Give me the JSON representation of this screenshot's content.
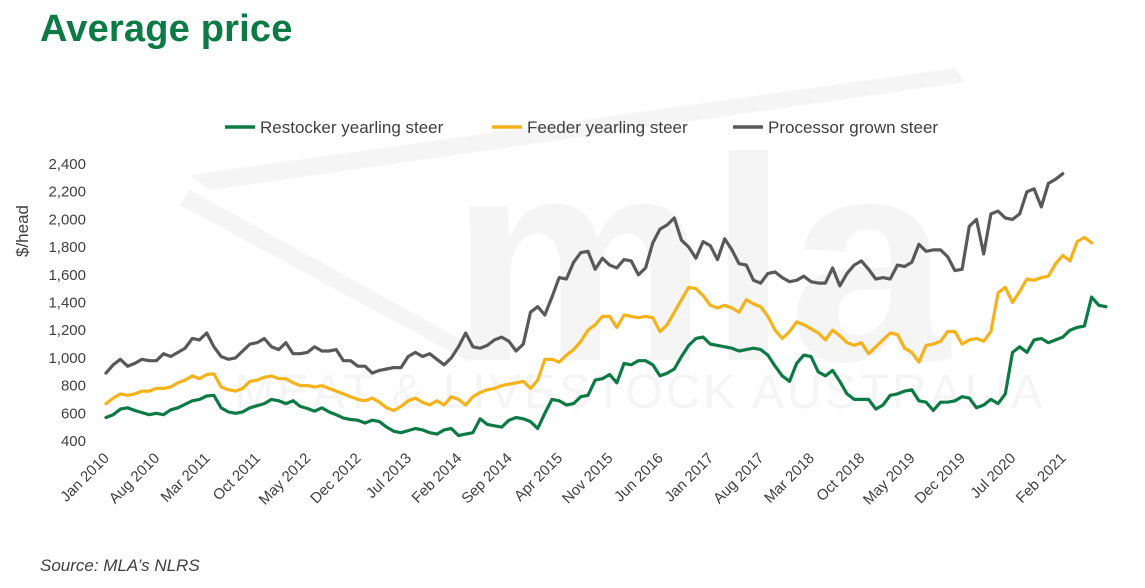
{
  "header": {
    "title": "Average price"
  },
  "footer": {
    "source": "Source: MLA’s NLRS"
  },
  "watermark": {
    "big": "mla",
    "small": "MEAT & LIVESTOCK AUSTRALIA"
  },
  "chart_data": {
    "type": "line",
    "ylabel": "$/head",
    "ylim": [
      400,
      2400
    ],
    "yticks": [
      400,
      600,
      800,
      1000,
      1200,
      1400,
      1600,
      1800,
      2000,
      2200,
      2400
    ],
    "ytick_labels": [
      "400",
      "600",
      "800",
      "1,000",
      "1,200",
      "1,400",
      "1,600",
      "1,800",
      "2,000",
      "2,200",
      "2,400"
    ],
    "x_start": "Jan 2010",
    "x_labels": [
      "Jan 2010",
      "Aug 2010",
      "Mar 2011",
      "Oct 2011",
      "May 2012",
      "Dec 2012",
      "Jul 2013",
      "Feb 2014",
      "Sep 2014",
      "Apr 2015",
      "Nov 2015",
      "Jun 2016",
      "Jan 2017",
      "Aug 2017",
      "Mar 2018",
      "Oct 2018",
      "May 2019",
      "Dec 2019",
      "Jul 2020",
      "Feb 2021"
    ],
    "legend_position": "top",
    "grid": false,
    "series": [
      {
        "name": "Restocker yearling steer",
        "color": "#0c7a45",
        "values": [
          570,
          590,
          630,
          640,
          620,
          605,
          590,
          600,
          590,
          625,
          640,
          665,
          690,
          700,
          725,
          730,
          640,
          610,
          600,
          610,
          640,
          655,
          670,
          700,
          690,
          670,
          690,
          650,
          635,
          615,
          640,
          610,
          590,
          565,
          555,
          550,
          530,
          550,
          540,
          500,
          470,
          460,
          475,
          490,
          480,
          460,
          450,
          480,
          490,
          440,
          450,
          460,
          560,
          520,
          510,
          500,
          550,
          570,
          560,
          540,
          490,
          600,
          700,
          690,
          660,
          670,
          720,
          730,
          840,
          850,
          880,
          820,
          960,
          950,
          980,
          980,
          950,
          870,
          890,
          920,
          1010,
          1090,
          1140,
          1150,
          1100,
          1090,
          1080,
          1070,
          1050,
          1060,
          1070,
          1060,
          1020,
          940,
          870,
          830,
          960,
          1020,
          1010,
          900,
          870,
          910,
          830,
          740,
          700,
          700,
          700,
          630,
          660,
          730,
          740,
          760,
          770,
          690,
          680,
          620,
          680,
          680,
          690,
          720,
          710,
          640,
          660,
          700,
          670,
          740,
          1040,
          1080,
          1040,
          1130,
          1140,
          1110,
          1130,
          1150,
          1200,
          1220,
          1230,
          1440,
          1380,
          1370
        ]
      },
      {
        "name": "Feeder yearling steer",
        "color": "#f6b21b",
        "values": [
          670,
          710,
          740,
          730,
          740,
          760,
          760,
          780,
          780,
          790,
          820,
          840,
          870,
          850,
          880,
          885,
          790,
          770,
          760,
          780,
          830,
          840,
          860,
          870,
          850,
          850,
          820,
          800,
          800,
          790,
          800,
          780,
          760,
          740,
          720,
          700,
          690,
          710,
          680,
          640,
          620,
          650,
          690,
          710,
          680,
          660,
          690,
          660,
          720,
          700,
          660,
          720,
          750,
          770,
          780,
          800,
          810,
          820,
          830,
          780,
          840,
          990,
          990,
          970,
          1020,
          1060,
          1120,
          1200,
          1240,
          1300,
          1300,
          1220,
          1310,
          1300,
          1290,
          1300,
          1290,
          1190,
          1240,
          1330,
          1420,
          1510,
          1500,
          1450,
          1380,
          1360,
          1380,
          1360,
          1330,
          1420,
          1390,
          1370,
          1300,
          1200,
          1140,
          1190,
          1260,
          1240,
          1210,
          1180,
          1130,
          1200,
          1160,
          1110,
          1090,
          1110,
          1030,
          1080,
          1130,
          1180,
          1170,
          1070,
          1040,
          970,
          1090,
          1100,
          1120,
          1190,
          1190,
          1100,
          1130,
          1140,
          1120,
          1190,
          1470,
          1510,
          1400,
          1480,
          1570,
          1560,
          1580,
          1590,
          1680,
          1740,
          1700,
          1840,
          1870,
          1830
        ]
      },
      {
        "name": "Processor grown steer",
        "color": "#595959",
        "values": [
          890,
          950,
          990,
          940,
          960,
          990,
          980,
          980,
          1030,
          1010,
          1040,
          1070,
          1140,
          1130,
          1180,
          1080,
          1010,
          990,
          1000,
          1050,
          1100,
          1110,
          1140,
          1080,
          1060,
          1110,
          1030,
          1030,
          1040,
          1080,
          1050,
          1050,
          1060,
          980,
          980,
          940,
          940,
          890,
          910,
          920,
          930,
          930,
          1010,
          1040,
          1010,
          1030,
          990,
          950,
          1000,
          1080,
          1180,
          1080,
          1070,
          1090,
          1130,
          1150,
          1120,
          1050,
          1100,
          1330,
          1370,
          1310,
          1440,
          1580,
          1570,
          1690,
          1760,
          1770,
          1640,
          1720,
          1670,
          1650,
          1710,
          1700,
          1600,
          1650,
          1830,
          1930,
          1960,
          2010,
          1850,
          1800,
          1720,
          1840,
          1810,
          1710,
          1860,
          1780,
          1680,
          1670,
          1560,
          1540,
          1610,
          1620,
          1580,
          1550,
          1560,
          1590,
          1550,
          1540,
          1540,
          1650,
          1520,
          1610,
          1670,
          1700,
          1640,
          1570,
          1580,
          1570,
          1670,
          1660,
          1690,
          1820,
          1770,
          1780,
          1780,
          1730,
          1630,
          1640,
          1950,
          2000,
          1750,
          2040,
          2060,
          2010,
          2000,
          2040,
          2200,
          2220,
          2090,
          2260,
          2290,
          2330
        ]
      }
    ]
  }
}
